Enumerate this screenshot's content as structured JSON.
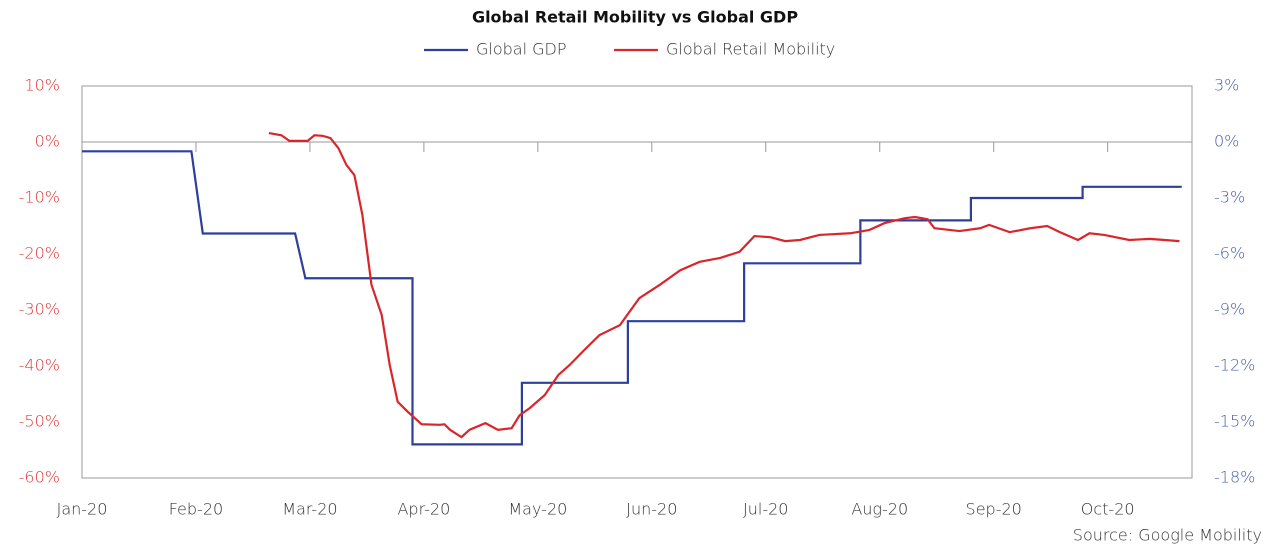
{
  "chart_data": {
    "type": "line",
    "title": "Global Retail Mobility vs Global GDP",
    "source": "Source: Google Mobility",
    "xlim": [
      0,
      9.74
    ],
    "xticks": [
      {
        "value": 0,
        "label": "Jan-20"
      },
      {
        "value": 1,
        "label": "Feb-20"
      },
      {
        "value": 2,
        "label": "Mar-20"
      },
      {
        "value": 3,
        "label": "Apr-20"
      },
      {
        "value": 4,
        "label": "May-20"
      },
      {
        "value": 5,
        "label": "Jun-20"
      },
      {
        "value": 6,
        "label": "Jul-20"
      },
      {
        "value": 7,
        "label": "Aug-20"
      },
      {
        "value": 8,
        "label": "Sep-20"
      },
      {
        "value": 9,
        "label": "Oct-20"
      }
    ],
    "ylim": [
      -60,
      10
    ],
    "yticks": [
      {
        "value": 10,
        "label": "10%"
      },
      {
        "value": 0,
        "label": "0%"
      },
      {
        "value": -10,
        "label": "-10%"
      },
      {
        "value": -20,
        "label": "-20%"
      },
      {
        "value": -30,
        "label": "-30%"
      },
      {
        "value": -40,
        "label": "-40%"
      },
      {
        "value": -50,
        "label": "-50%"
      },
      {
        "value": -60,
        "label": "-60%"
      }
    ],
    "y2lim": [
      -18,
      3
    ],
    "y2ticks": [
      {
        "value": 3,
        "label": "3%"
      },
      {
        "value": 0,
        "label": "0%"
      },
      {
        "value": -3,
        "label": "-3%"
      },
      {
        "value": -6,
        "label": "-6%"
      },
      {
        "value": -9,
        "label": "-9%"
      },
      {
        "value": -12,
        "label": "-12%"
      },
      {
        "value": -15,
        "label": "-15%"
      },
      {
        "value": -18,
        "label": "-18%"
      }
    ],
    "ycolor": "#e03a3e",
    "y2color": "#4a5fa8",
    "series": [
      {
        "name": "Global GDP",
        "color": "#2e3f99",
        "axis": "y2",
        "x": [
          0,
          0.96,
          1.06,
          1.87,
          1.96,
          2.9,
          2.9,
          3.86,
          3.86,
          4.79,
          4.79,
          5.81,
          5.81,
          6.83,
          6.83,
          7.8,
          7.8,
          8.78,
          8.78,
          9.65
        ],
        "values": [
          -0.5,
          -0.5,
          -4.9,
          -4.9,
          -7.3,
          -7.3,
          -16.2,
          -16.2,
          -12.9,
          -12.9,
          -9.6,
          -9.6,
          -6.5,
          -6.5,
          -4.2,
          -4.2,
          -3.0,
          -3.0,
          -2.4,
          -2.4
        ]
      },
      {
        "name": "Global Retail Mobility",
        "color": "#d9262c",
        "axis": "y",
        "x": [
          1.64,
          1.75,
          1.82,
          1.91,
          1.98,
          2.04,
          2.11,
          2.18,
          2.25,
          2.32,
          2.39,
          2.46,
          2.54,
          2.63,
          2.7,
          2.77,
          2.86,
          2.98,
          3.14,
          3.18,
          3.23,
          3.33,
          3.4,
          3.54,
          3.65,
          3.77,
          3.84,
          3.93,
          4.06,
          4.18,
          4.28,
          4.41,
          4.54,
          4.72,
          4.89,
          5.07,
          5.25,
          5.42,
          5.6,
          5.77,
          5.9,
          6.04,
          6.17,
          6.3,
          6.47,
          6.74,
          6.91,
          7.04,
          7.22,
          7.31,
          7.42,
          7.48,
          7.7,
          7.88,
          7.96,
          8.14,
          8.32,
          8.47,
          8.58,
          8.74,
          8.84,
          8.97,
          9.19,
          9.37,
          9.63
        ],
        "values": [
          1.6,
          1.2,
          0.2,
          0.2,
          0.2,
          1.2,
          1.1,
          0.7,
          -1.1,
          -4.1,
          -5.9,
          -13,
          -25.5,
          -30.9,
          -39.8,
          -46.4,
          -48.2,
          -50.4,
          -50.5,
          -50.4,
          -51.4,
          -52.7,
          -51.4,
          -50.2,
          -51.4,
          -51.1,
          -48.8,
          -47.5,
          -45.2,
          -41.6,
          -39.8,
          -37.1,
          -34.5,
          -32.7,
          -27.9,
          -25.5,
          -22.9,
          -21.4,
          -20.7,
          -19.6,
          -16.8,
          -17,
          -17.7,
          -17.5,
          -16.6,
          -16.3,
          -15.7,
          -14.5,
          -13.6,
          -13.4,
          -13.8,
          -15.4,
          -15.9,
          -15.4,
          -14.8,
          -16.1,
          -15.4,
          -15,
          -16.1,
          -17.5,
          -16.3,
          -16.6,
          -17.5,
          -17.3,
          -17.7
        ]
      }
    ]
  }
}
